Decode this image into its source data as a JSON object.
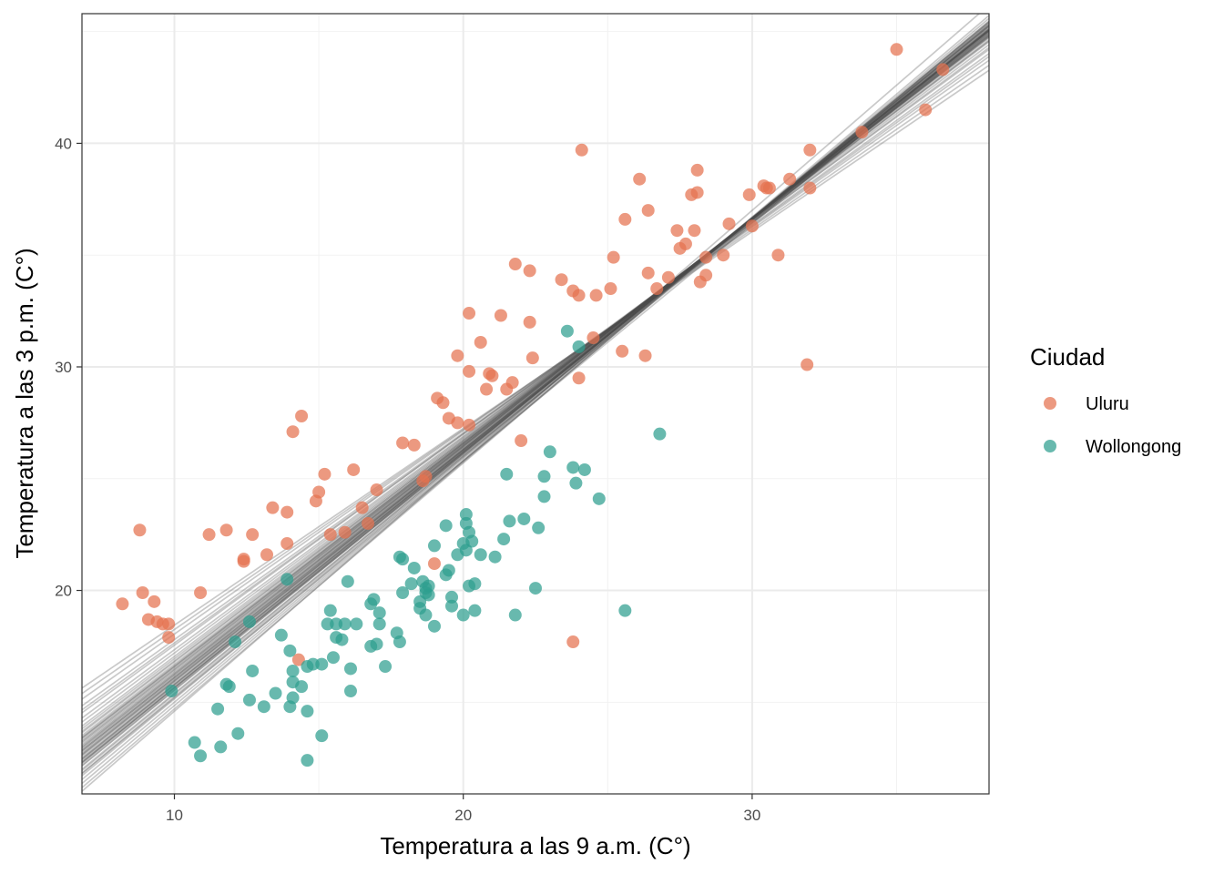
{
  "chart_data": {
    "type": "scatter",
    "title": "",
    "xlabel": "Temperatura a las 9 a.m. (C°)",
    "ylabel": "Temperatura a las 3 p.m. (C°)",
    "xlim": [
      6.8,
      38.2
    ],
    "ylim": [
      10.9,
      45.8
    ],
    "x_ticks": [
      10,
      20,
      30
    ],
    "y_ticks": [
      20,
      30,
      40
    ],
    "x_tick_labels": [
      "10",
      "20",
      "30"
    ],
    "y_tick_labels": [
      "20",
      "30",
      "40"
    ],
    "grid": true,
    "legend": {
      "title": "Ciudad",
      "position": "right"
    },
    "series": [
      {
        "name": "Uluru",
        "color": "#E4714F",
        "points": [
          [
            8.2,
            19.4
          ],
          [
            8.8,
            22.7
          ],
          [
            8.9,
            19.9
          ],
          [
            9.1,
            18.7
          ],
          [
            9.3,
            19.5
          ],
          [
            9.4,
            18.6
          ],
          [
            9.6,
            18.5
          ],
          [
            9.8,
            18.5
          ],
          [
            9.8,
            17.9
          ],
          [
            10.9,
            19.9
          ],
          [
            11.2,
            22.5
          ],
          [
            11.8,
            22.7
          ],
          [
            12.4,
            21.4
          ],
          [
            12.4,
            21.3
          ],
          [
            12.7,
            22.5
          ],
          [
            13.2,
            21.6
          ],
          [
            13.4,
            23.7
          ],
          [
            13.9,
            23.5
          ],
          [
            13.9,
            22.1
          ],
          [
            14.1,
            27.1
          ],
          [
            14.4,
            27.8
          ],
          [
            14.3,
            16.9
          ],
          [
            14.9,
            24.0
          ],
          [
            15.0,
            24.4
          ],
          [
            15.2,
            25.2
          ],
          [
            15.4,
            22.5
          ],
          [
            15.9,
            22.6
          ],
          [
            16.2,
            25.4
          ],
          [
            16.5,
            23.7
          ],
          [
            16.7,
            23.0
          ],
          [
            17.0,
            24.5
          ],
          [
            17.9,
            26.6
          ],
          [
            18.3,
            26.5
          ],
          [
            18.6,
            24.9
          ],
          [
            18.7,
            25.1
          ],
          [
            19.0,
            21.2
          ],
          [
            19.1,
            28.6
          ],
          [
            19.3,
            28.4
          ],
          [
            19.5,
            27.7
          ],
          [
            19.8,
            27.5
          ],
          [
            19.8,
            30.5
          ],
          [
            20.2,
            29.8
          ],
          [
            20.2,
            27.4
          ],
          [
            20.2,
            32.4
          ],
          [
            20.6,
            31.1
          ],
          [
            20.8,
            29.0
          ],
          [
            20.9,
            29.7
          ],
          [
            21.0,
            29.6
          ],
          [
            21.3,
            32.3
          ],
          [
            21.5,
            29.0
          ],
          [
            21.7,
            29.3
          ],
          [
            21.8,
            34.6
          ],
          [
            22.0,
            26.7
          ],
          [
            22.3,
            34.3
          ],
          [
            22.3,
            32.0
          ],
          [
            22.4,
            30.4
          ],
          [
            23.4,
            33.9
          ],
          [
            23.8,
            33.4
          ],
          [
            23.8,
            17.7
          ],
          [
            24.0,
            33.2
          ],
          [
            24.0,
            29.5
          ],
          [
            24.1,
            39.7
          ],
          [
            24.5,
            31.3
          ],
          [
            24.6,
            33.2
          ],
          [
            25.1,
            33.5
          ],
          [
            25.2,
            34.9
          ],
          [
            25.5,
            30.7
          ],
          [
            25.6,
            36.6
          ],
          [
            26.1,
            38.4
          ],
          [
            26.3,
            30.5
          ],
          [
            26.4,
            34.2
          ],
          [
            26.4,
            37.0
          ],
          [
            26.7,
            33.5
          ],
          [
            27.1,
            34.0
          ],
          [
            27.4,
            36.1
          ],
          [
            27.5,
            35.3
          ],
          [
            27.7,
            35.5
          ],
          [
            27.9,
            37.7
          ],
          [
            28.0,
            36.1
          ],
          [
            28.1,
            37.8
          ],
          [
            28.1,
            38.8
          ],
          [
            28.2,
            33.8
          ],
          [
            28.4,
            34.1
          ],
          [
            28.4,
            34.9
          ],
          [
            29.0,
            35.0
          ],
          [
            29.2,
            36.4
          ],
          [
            29.9,
            37.7
          ],
          [
            30.0,
            36.3
          ],
          [
            30.4,
            38.1
          ],
          [
            30.5,
            38.0
          ],
          [
            30.6,
            38.0
          ],
          [
            30.9,
            35.0
          ],
          [
            31.3,
            38.4
          ],
          [
            31.9,
            30.1
          ],
          [
            32.0,
            38.0
          ],
          [
            32.0,
            39.7
          ],
          [
            33.8,
            40.5
          ],
          [
            35.0,
            44.2
          ],
          [
            36.0,
            41.5
          ],
          [
            36.6,
            43.3
          ]
        ]
      },
      {
        "name": "Wollongong",
        "color": "#2E9E8F",
        "points": [
          [
            9.9,
            15.5
          ],
          [
            10.7,
            13.2
          ],
          [
            10.9,
            12.6
          ],
          [
            11.5,
            14.7
          ],
          [
            11.6,
            13.0
          ],
          [
            11.8,
            15.8
          ],
          [
            11.9,
            15.7
          ],
          [
            12.1,
            17.7
          ],
          [
            12.2,
            13.6
          ],
          [
            12.6,
            18.6
          ],
          [
            12.7,
            16.4
          ],
          [
            12.6,
            15.1
          ],
          [
            13.1,
            14.8
          ],
          [
            13.5,
            15.4
          ],
          [
            13.7,
            18.0
          ],
          [
            13.9,
            20.5
          ],
          [
            14.0,
            17.3
          ],
          [
            14.0,
            14.8
          ],
          [
            14.1,
            16.4
          ],
          [
            14.1,
            15.9
          ],
          [
            14.1,
            15.2
          ],
          [
            14.4,
            15.7
          ],
          [
            14.6,
            16.6
          ],
          [
            14.6,
            14.6
          ],
          [
            14.6,
            12.4
          ],
          [
            14.8,
            16.7
          ],
          [
            15.1,
            16.7
          ],
          [
            15.1,
            13.5
          ],
          [
            15.3,
            18.5
          ],
          [
            15.4,
            19.1
          ],
          [
            15.5,
            17.0
          ],
          [
            15.6,
            18.5
          ],
          [
            15.6,
            17.9
          ],
          [
            15.8,
            17.8
          ],
          [
            15.9,
            18.5
          ],
          [
            16.0,
            20.4
          ],
          [
            16.1,
            16.5
          ],
          [
            16.1,
            15.5
          ],
          [
            16.3,
            18.5
          ],
          [
            16.8,
            19.4
          ],
          [
            16.8,
            17.5
          ],
          [
            16.9,
            19.6
          ],
          [
            17.0,
            17.6
          ],
          [
            17.1,
            19.0
          ],
          [
            17.1,
            18.5
          ],
          [
            17.3,
            16.6
          ],
          [
            17.7,
            18.1
          ],
          [
            17.8,
            17.7
          ],
          [
            17.8,
            21.5
          ],
          [
            17.9,
            21.4
          ],
          [
            17.9,
            19.9
          ],
          [
            18.2,
            20.3
          ],
          [
            18.3,
            21.0
          ],
          [
            18.5,
            19.5
          ],
          [
            18.5,
            19.2
          ],
          [
            18.6,
            20.4
          ],
          [
            18.7,
            18.9
          ],
          [
            18.7,
            19.9
          ],
          [
            18.7,
            20.1
          ],
          [
            18.8,
            19.8
          ],
          [
            18.8,
            20.2
          ],
          [
            19.0,
            22.0
          ],
          [
            19.0,
            18.4
          ],
          [
            19.4,
            22.9
          ],
          [
            19.4,
            20.7
          ],
          [
            19.5,
            20.9
          ],
          [
            19.6,
            19.7
          ],
          [
            19.6,
            19.3
          ],
          [
            19.8,
            21.6
          ],
          [
            20.0,
            18.9
          ],
          [
            20.0,
            22.1
          ],
          [
            20.1,
            21.8
          ],
          [
            20.1,
            23.4
          ],
          [
            20.1,
            23.0
          ],
          [
            20.2,
            22.6
          ],
          [
            20.2,
            20.2
          ],
          [
            20.3,
            22.2
          ],
          [
            20.4,
            20.3
          ],
          [
            20.4,
            19.1
          ],
          [
            20.6,
            21.6
          ],
          [
            21.1,
            21.5
          ],
          [
            21.4,
            22.3
          ],
          [
            21.5,
            25.2
          ],
          [
            21.6,
            23.1
          ],
          [
            21.8,
            18.9
          ],
          [
            22.1,
            23.2
          ],
          [
            22.5,
            20.1
          ],
          [
            22.6,
            22.8
          ],
          [
            22.8,
            25.1
          ],
          [
            22.8,
            24.2
          ],
          [
            23.0,
            26.2
          ],
          [
            23.6,
            31.6
          ],
          [
            23.8,
            25.5
          ],
          [
            23.9,
            24.8
          ],
          [
            24.0,
            30.9
          ],
          [
            24.2,
            25.4
          ],
          [
            24.7,
            24.1
          ],
          [
            25.6,
            19.1
          ],
          [
            26.8,
            27.0
          ]
        ]
      }
    ],
    "fit_lines": {
      "color": "#4d4d4d",
      "lines": [
        [
          1.12,
          3.4
        ],
        [
          1.1,
          3.7
        ],
        [
          1.09,
          3.95
        ],
        [
          1.08,
          4.2
        ],
        [
          1.075,
          4.4
        ],
        [
          1.07,
          4.55
        ],
        [
          1.065,
          4.7
        ],
        [
          1.06,
          4.8
        ],
        [
          1.058,
          4.95
        ],
        [
          1.055,
          5.0
        ],
        [
          1.052,
          5.1
        ],
        [
          1.05,
          5.15
        ],
        [
          1.048,
          5.2
        ],
        [
          1.045,
          5.3
        ],
        [
          1.043,
          5.35
        ],
        [
          1.04,
          5.4
        ],
        [
          1.038,
          5.45
        ],
        [
          1.036,
          5.55
        ],
        [
          1.034,
          5.6
        ],
        [
          1.032,
          5.65
        ],
        [
          1.03,
          5.7
        ],
        [
          1.028,
          5.78
        ],
        [
          1.026,
          5.85
        ],
        [
          1.024,
          5.92
        ],
        [
          1.022,
          6.0
        ],
        [
          1.02,
          6.05
        ],
        [
          1.017,
          6.12
        ],
        [
          1.014,
          6.2
        ],
        [
          1.011,
          6.3
        ],
        [
          1.008,
          6.38
        ],
        [
          1.005,
          6.45
        ],
        [
          1.002,
          6.55
        ],
        [
          0.998,
          6.65
        ],
        [
          0.995,
          6.75
        ],
        [
          0.99,
          6.9
        ],
        [
          0.985,
          7.0
        ],
        [
          0.98,
          7.15
        ],
        [
          0.975,
          7.3
        ],
        [
          0.965,
          7.55
        ],
        [
          0.955,
          7.8
        ],
        [
          0.945,
          8.1
        ],
        [
          0.935,
          8.3
        ],
        [
          0.925,
          8.55
        ],
        [
          0.91,
          8.95
        ],
        [
          0.895,
          9.3
        ],
        [
          0.88,
          9.65
        ],
        [
          1.06,
          4.6
        ],
        [
          1.0,
          6.6
        ],
        [
          1.04,
          5.25
        ],
        [
          1.02,
          5.9
        ]
      ]
    }
  }
}
